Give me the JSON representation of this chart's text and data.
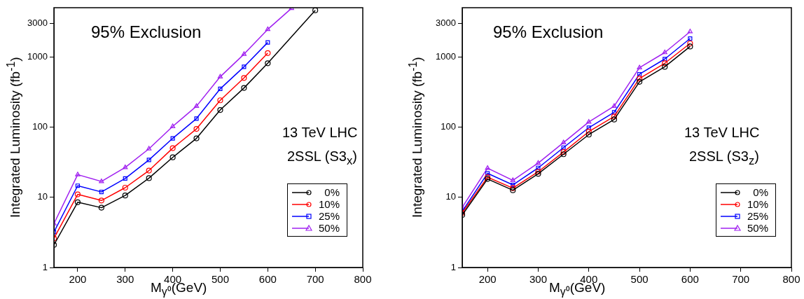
{
  "chart_data": [
    {
      "type": "line",
      "xlabel": "M$_{γ⁰}$(GeV)",
      "ylabel": "Integrated Luminosity (fb$^{-1}$)",
      "log": "y",
      "grid": false,
      "legend": "right",
      "line_style": "solid",
      "annotations": [
        "95% Exclusion",
        "13 TeV LHC",
        "2SSL (S3$_{x}$)"
      ],
      "xlim": [
        150,
        800
      ],
      "xticks": [
        200,
        300,
        400,
        500,
        600,
        700,
        800
      ],
      "ylim": [
        1,
        5000
      ],
      "yticks": [
        1,
        10,
        100,
        1000,
        3000
      ],
      "series": [
        {
          "name": "0%",
          "color": "#000000",
          "marker": "circle",
          "x": [
            150,
            200,
            250,
            300,
            350,
            400,
            450,
            500,
            550,
            600,
            700
          ],
          "values": [
            2.1,
            8.5,
            7.1,
            10.6,
            18.7,
            37,
            69,
            175,
            360,
            810,
            4600
          ]
        },
        {
          "name": "10%",
          "color": "#ff0000",
          "marker": "circle",
          "x": [
            150,
            200,
            250,
            300,
            350,
            400,
            450,
            500,
            550,
            600
          ],
          "values": [
            2.6,
            11,
            9,
            13.7,
            24,
            50,
            94,
            240,
            500,
            1130
          ]
        },
        {
          "name": "25%",
          "color": "#0000ff",
          "marker": "square",
          "x": [
            150,
            200,
            250,
            300,
            350,
            400,
            450,
            500,
            550,
            600
          ],
          "values": [
            3.2,
            14.6,
            11.9,
            18.5,
            34,
            69,
            132,
            350,
            720,
            1600
          ]
        },
        {
          "name": "50%",
          "color": "#a020f0",
          "marker": "triangle",
          "x": [
            150,
            200,
            250,
            300,
            350,
            400,
            450,
            500,
            550,
            600,
            650
          ],
          "values": [
            4.2,
            21,
            16.8,
            26.6,
            49,
            102,
            198,
            520,
            1090,
            2460,
            4900
          ]
        }
      ]
    },
    {
      "type": "line",
      "xlabel": "M$_{γ⁰}$(GeV)",
      "ylabel": "Integrated Luminosity (fb$^{-1}$)",
      "log": "y",
      "grid": false,
      "legend": "right",
      "line_style": "solid",
      "annotations": [
        "95% Exclusion",
        "13 TeV LHC",
        "2SSL (S3$_{z}$)"
      ],
      "xlim": [
        150,
        800
      ],
      "xticks": [
        200,
        300,
        400,
        500,
        600,
        700,
        800
      ],
      "ylim": [
        1,
        5000
      ],
      "yticks": [
        1,
        10,
        100,
        1000,
        3000
      ],
      "series": [
        {
          "name": "0%",
          "color": "#000000",
          "marker": "circle",
          "x": [
            150,
            200,
            250,
            300,
            350,
            400,
            450,
            500,
            550,
            600
          ],
          "values": [
            5.6,
            18.2,
            12.6,
            21.6,
            41,
            78,
            128,
            440,
            720,
            1400
          ]
        },
        {
          "name": "10%",
          "color": "#ff0000",
          "marker": "circle",
          "x": [
            150,
            200,
            250,
            300,
            350,
            400,
            450,
            500,
            550,
            600
          ],
          "values": [
            6,
            19.3,
            13.5,
            23.1,
            44,
            86,
            141,
            490,
            810,
            1550
          ]
        },
        {
          "name": "25%",
          "color": "#0000ff",
          "marker": "square",
          "x": [
            150,
            200,
            250,
            300,
            350,
            400,
            450,
            500,
            550,
            600
          ],
          "values": [
            6.3,
            21.9,
            15,
            26.2,
            51,
            98,
            162,
            565,
            930,
            1820
          ]
        },
        {
          "name": "50%",
          "color": "#a020f0",
          "marker": "triangle",
          "x": [
            150,
            200,
            250,
            300,
            350,
            400,
            450,
            500,
            550,
            600
          ],
          "values": [
            7.2,
            26,
            17.4,
            30.7,
            60,
            118,
            198,
            700,
            1150,
            2280
          ]
        }
      ]
    }
  ]
}
